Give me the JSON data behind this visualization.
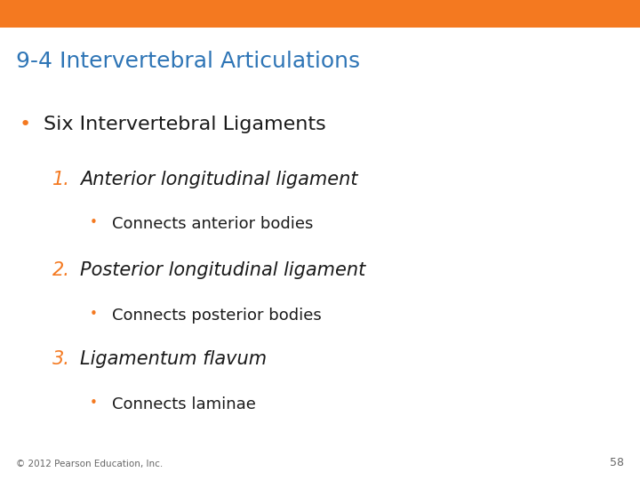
{
  "title": "9-4 Intervertebral Articulations",
  "title_color": "#2E75B6",
  "header_bar_color": "#F47920",
  "header_bar_height": 0.058,
  "background_color": "#FFFFFF",
  "bullet1_text": "Six Intervertebral Ligaments",
  "bullet1_color": "#1A1A1A",
  "bullet1_dot_color": "#F47920",
  "items": [
    {
      "number": "1.",
      "number_color": "#F47920",
      "text": "Anterior longitudinal ligament",
      "sub_bullet": "Connects anterior bodies"
    },
    {
      "number": "2.",
      "number_color": "#F47920",
      "text": "Posterior longitudinal ligament",
      "sub_bullet": "Connects posterior bodies"
    },
    {
      "number": "3.",
      "number_color": "#F47920",
      "text": "Ligamentum flavum",
      "sub_bullet": "Connects laminae"
    }
  ],
  "footer_text": "© 2012 Pearson Education, Inc.",
  "page_number": "58",
  "footer_color": "#666666",
  "sub_bullet_dot_color": "#F47920",
  "title_fontsize": 18,
  "bullet1_fontsize": 16,
  "item_fontsize": 15,
  "sub_fontsize": 13
}
